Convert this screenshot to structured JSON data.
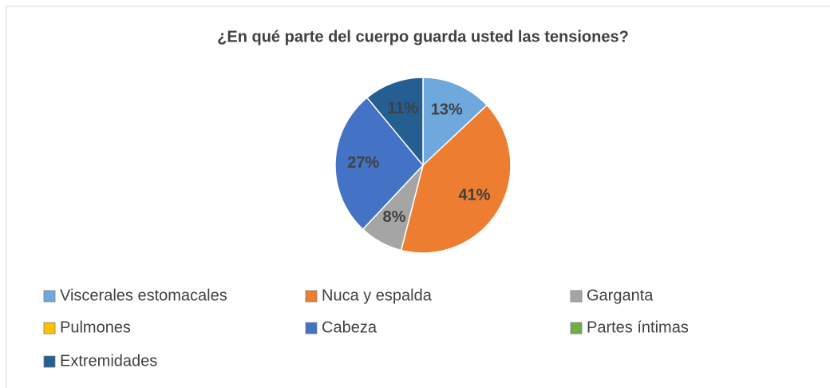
{
  "chart_data": {
    "type": "pie",
    "title": "¿En qué parte del cuerpo guarda usted las tensiones?",
    "categories": [
      "Viscerales estomacales",
      "Nuca y espalda",
      "Garganta",
      "Pulmones",
      "Cabeza",
      "Partes íntimas",
      "Extremidades"
    ],
    "values": [
      13,
      41,
      8,
      0,
      27,
      0,
      11
    ],
    "value_labels": [
      "13%",
      "41%",
      "8%",
      null,
      "27%",
      null,
      "11%"
    ],
    "colors": [
      "#6fa8dc",
      "#ed7d31",
      "#a5a5a5",
      "#ffc000",
      "#4472c4",
      "#70ad47",
      "#255e91"
    ],
    "legend": "bottom"
  }
}
